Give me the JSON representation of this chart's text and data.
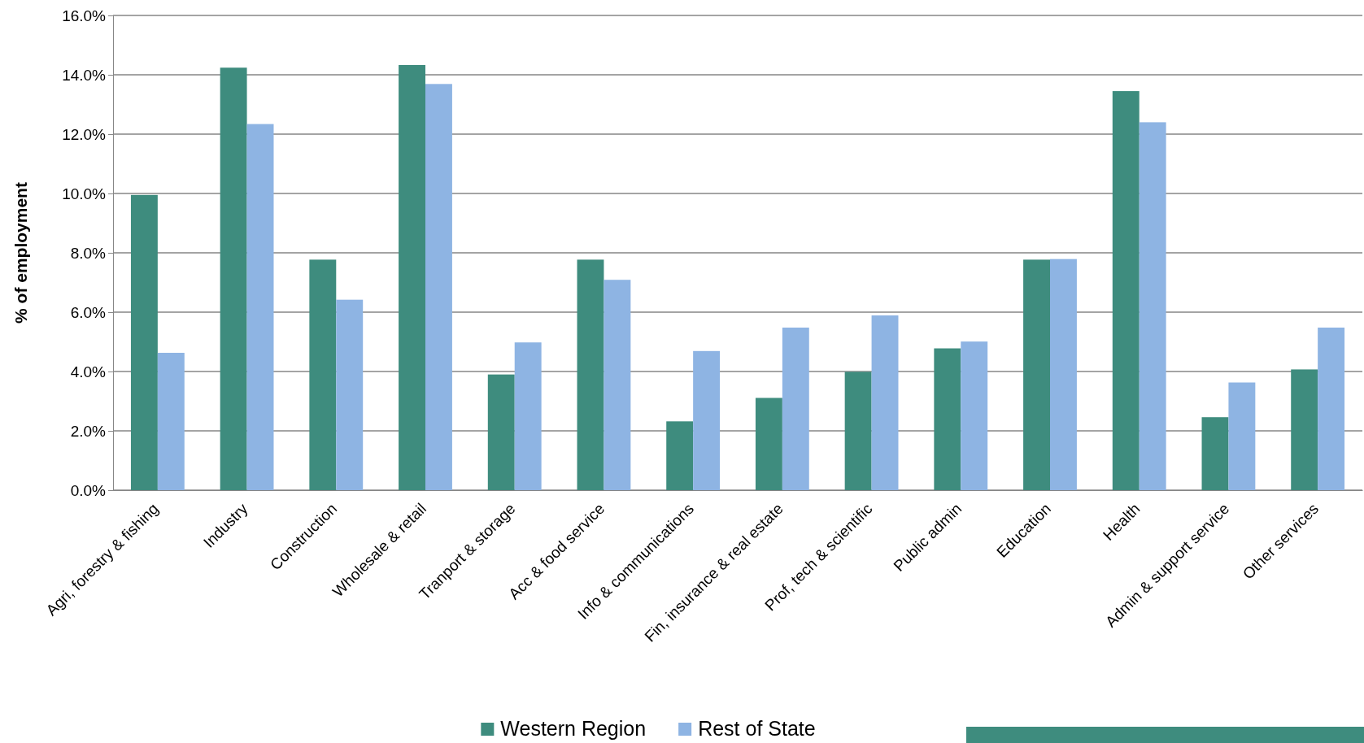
{
  "chart_data": {
    "type": "bar",
    "ylabel": "% of employment",
    "categories": [
      "Agri, forestry & fishing",
      "Industry",
      "Construction",
      "Wholesale & retail",
      "Tranport & storage",
      "Acc & food service",
      "Info & communications",
      "Fin, insurance & real estate",
      "Prof, tech & scientific",
      "Public admin",
      "Education",
      "Health",
      "Admin & support service",
      "Other services"
    ],
    "series": [
      {
        "name": "Western Region",
        "color": "#3e8c7e",
        "values": [
          9.95,
          14.24,
          7.77,
          14.33,
          3.9,
          7.77,
          2.32,
          3.11,
          3.99,
          4.78,
          7.77,
          13.45,
          2.46,
          4.07
        ]
      },
      {
        "name": "Rest of State",
        "color": "#8eb4e3",
        "values": [
          4.63,
          12.34,
          6.42,
          13.69,
          4.98,
          7.09,
          4.69,
          5.48,
          5.89,
          5.01,
          7.79,
          12.4,
          3.63,
          5.48
        ]
      }
    ],
    "ylim": [
      0,
      16
    ],
    "yticks": [
      {
        "value": 0,
        "label": "0.0%"
      },
      {
        "value": 2,
        "label": "2.0%"
      },
      {
        "value": 4,
        "label": "4.0%"
      },
      {
        "value": 6,
        "label": "6.0%"
      },
      {
        "value": 8,
        "label": "8.0%"
      },
      {
        "value": 10,
        "label": "10.0%"
      },
      {
        "value": 12,
        "label": "12.0%"
      },
      {
        "value": 14,
        "label": "14.0%"
      },
      {
        "value": 16,
        "label": "16.0%"
      }
    ],
    "grid": "y",
    "legend": "bottom"
  }
}
